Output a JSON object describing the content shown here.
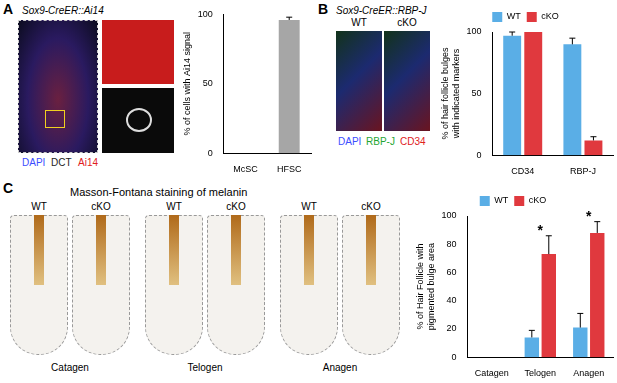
{
  "panels": [
    {
      "letter": "A",
      "title": "Sox9-CreER::Ai14",
      "image_labels": [
        {
          "text": "DAPI",
          "color": "#3a4cff"
        },
        {
          "text": "DCT",
          "color": "#222222"
        },
        {
          "text": "Ai14",
          "color": "#e0201c"
        }
      ]
    },
    {
      "letter": "B",
      "title": "Sox9-CreER::RBP-J",
      "image_columns": [
        "WT",
        "cKO"
      ],
      "image_labels": [
        {
          "text": "DAPI",
          "color": "#3a4cff"
        },
        {
          "text": "RBP-J",
          "color": "#1fa533"
        },
        {
          "text": "CD34",
          "color": "#e0201c"
        }
      ]
    },
    {
      "letter": "C",
      "title": "Masson-Fontana staining of melanin",
      "image_columns": [
        "WT",
        "cKO",
        "WT",
        "cKO",
        "WT",
        "cKO"
      ],
      "image_captions": [
        "Catagen",
        "Telogen",
        "Anagen"
      ]
    }
  ],
  "chart_data": [
    {
      "type": "bar",
      "y_label": "% of cells with Ai14 signal",
      "categories": [
        "McSC",
        "HFSC"
      ],
      "values": [
        0,
        96
      ],
      "errors": [
        0,
        2
      ],
      "color": "#a6a6a6",
      "ylim": [
        0,
        100
      ],
      "yticks": [
        0,
        50,
        100
      ],
      "grid": false
    },
    {
      "type": "bar",
      "y_label": "% of hair follicle bulges with indicated markers",
      "categories": [
        "CD34",
        "RBP-J"
      ],
      "series": [
        {
          "name": "WT",
          "color": "#5aaee6",
          "values": [
            97,
            90
          ],
          "errors": [
            3,
            5
          ]
        },
        {
          "name": "cKO",
          "color": "#e0393e",
          "values": [
            100,
            12
          ],
          "errors": [
            0,
            3
          ]
        }
      ],
      "ylim": [
        0,
        100
      ],
      "yticks": [
        0,
        50,
        100
      ],
      "grid": false,
      "legend": "top"
    },
    {
      "type": "bar",
      "y_label": "% of Hair Follicle with pigmented bulge area",
      "categories": [
        "Catagen",
        "Telogen",
        "Anagen"
      ],
      "series": [
        {
          "name": "WT",
          "color": "#5aaee6",
          "values": [
            0,
            14,
            21
          ],
          "errors": [
            0,
            5,
            10
          ]
        },
        {
          "name": "cKO",
          "color": "#e0393e",
          "values": [
            0,
            73,
            88
          ],
          "errors": [
            0,
            13,
            8
          ]
        }
      ],
      "annotations": [
        {
          "category": "Telogen",
          "text": "*"
        },
        {
          "category": "Anagen",
          "text": "*"
        }
      ],
      "ylim": [
        0,
        100
      ],
      "yticks": [
        0,
        20,
        40,
        60,
        80,
        100
      ],
      "grid": false,
      "legend": "top"
    }
  ]
}
